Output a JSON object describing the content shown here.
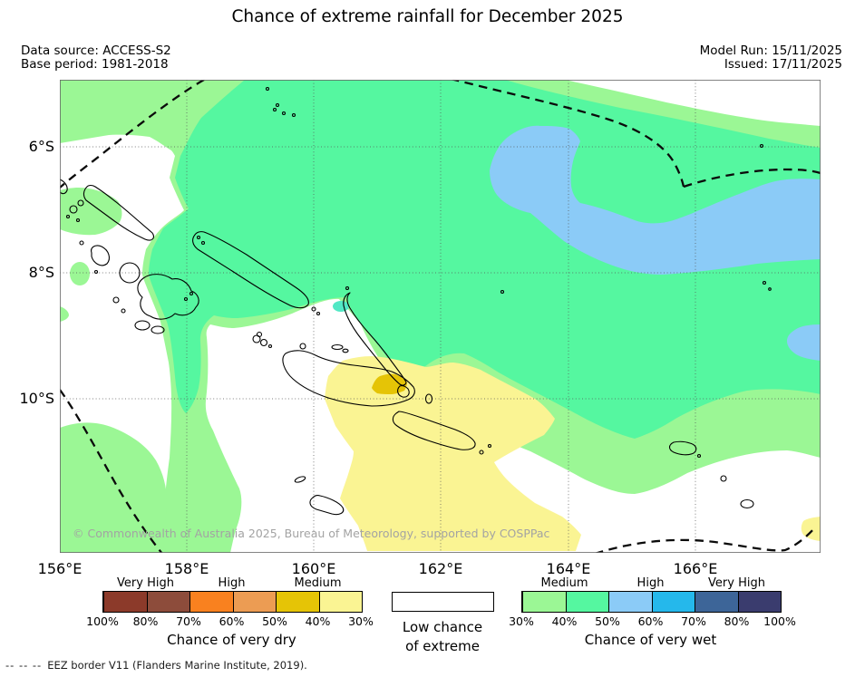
{
  "title": "Chance of extreme rainfall for December 2025",
  "header": {
    "data_source": "Data source: ACCESS-S2",
    "base_period": "Base period: 1981-2018",
    "model_run": "Model Run: 15/11/2025",
    "issued": "Issued: 17/11/2025"
  },
  "map": {
    "lat_labels": [
      {
        "text": "6°S"
      },
      {
        "text": "8°S"
      },
      {
        "text": "10°S"
      }
    ],
    "lon_labels": [
      {
        "text": "156°E"
      },
      {
        "text": "158°E"
      },
      {
        "text": "160°E"
      },
      {
        "text": "162°E"
      },
      {
        "text": "164°E"
      },
      {
        "text": "166°E"
      }
    ],
    "copyright": "© Commonwealth of Australia 2025, Bureau of Meteorology, supported by COSPPac"
  },
  "legend": {
    "dry": {
      "title": "Chance of very dry",
      "categories": [
        "Very High",
        "High",
        "Medium"
      ],
      "ticks": [
        "100%",
        "80%",
        "70%",
        "60%",
        "50%",
        "40%",
        "30%"
      ],
      "colors": [
        "#8C3A2A",
        "#8D4C3B",
        "#F9811F",
        "#EC9C53",
        "#E5C406",
        "#FAF493"
      ]
    },
    "center": {
      "line1": "Low chance",
      "line2": "of extreme"
    },
    "wet": {
      "title": "Chance of very wet",
      "categories": [
        "Medium",
        "High",
        "Very High"
      ],
      "ticks": [
        "30%",
        "40%",
        "50%",
        "60%",
        "70%",
        "80%",
        "100%"
      ],
      "colors": [
        "#9BF795",
        "#55F7A0",
        "#8BCBF7",
        "#25B8EB",
        "#3D6598",
        "#3A3C6E"
      ]
    }
  },
  "footnote": {
    "symbol": "--  --  --",
    "text": "EEZ border V11 (Flanders Marine Institute, 2019)."
  },
  "map_colors": {
    "wet_30_40": "#9BF795",
    "wet_40_50": "#55F7A0",
    "wet_50_60": "#8BCBF7",
    "dry_30_40": "#FAF493",
    "dry_40_50": "#E5C406",
    "low_chance": "#FFFFFF"
  }
}
